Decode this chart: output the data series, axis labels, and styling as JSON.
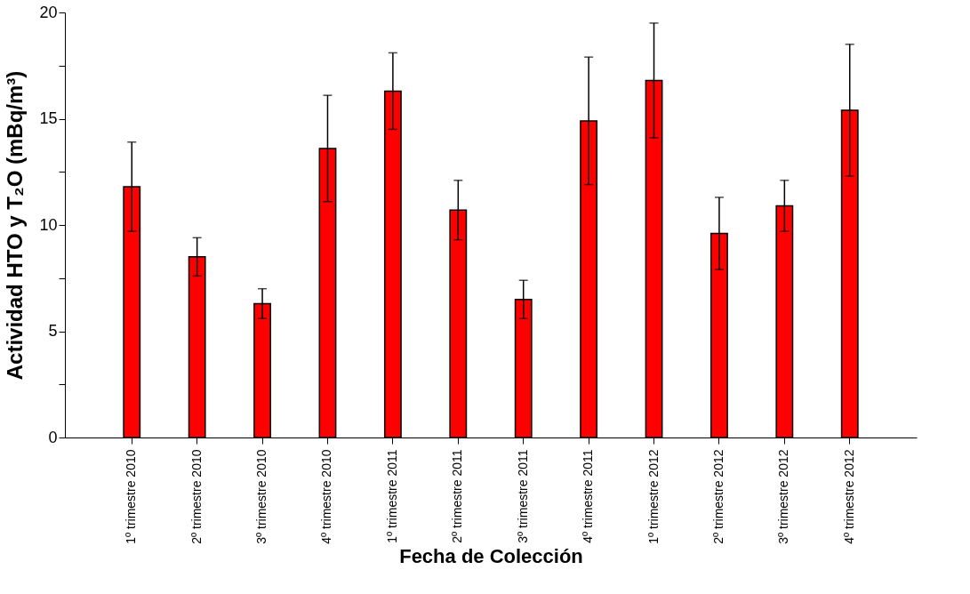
{
  "chart_data": {
    "type": "bar",
    "xlabel": "Fecha de Colección",
    "ylabel": "Actividad HTO y T₂O (mBq/m³)",
    "categories": [
      "1º trimestre 2010",
      "2º trimestre 2010",
      "3º trimestre 2010",
      "4º trimestre 2010",
      "1º trimestre 2011",
      "2º trimestre 2011",
      "3º trimestre 2011",
      "4º trimestre 2011",
      "1º trimestre 2012",
      "2º trimestre 2012",
      "3º trimestre 2012",
      "4º trimestre 2012"
    ],
    "values": [
      11.8,
      8.5,
      6.3,
      13.6,
      16.3,
      10.7,
      6.5,
      14.9,
      16.8,
      9.6,
      10.9,
      15.4
    ],
    "errors": [
      2.1,
      0.9,
      0.7,
      2.5,
      1.8,
      1.4,
      0.9,
      3.0,
      2.7,
      1.7,
      1.2,
      3.1
    ],
    "color": "#ff0000",
    "ylim": [
      0,
      20
    ],
    "yticks": [
      0,
      {
        "value": 2.5,
        "label": null
      },
      5,
      {
        "value": 7.5,
        "label": null
      },
      10,
      {
        "value": 12.5,
        "label": null
      },
      15,
      {
        "value": 17.5,
        "label": null
      },
      20
    ],
    "grid": false
  }
}
